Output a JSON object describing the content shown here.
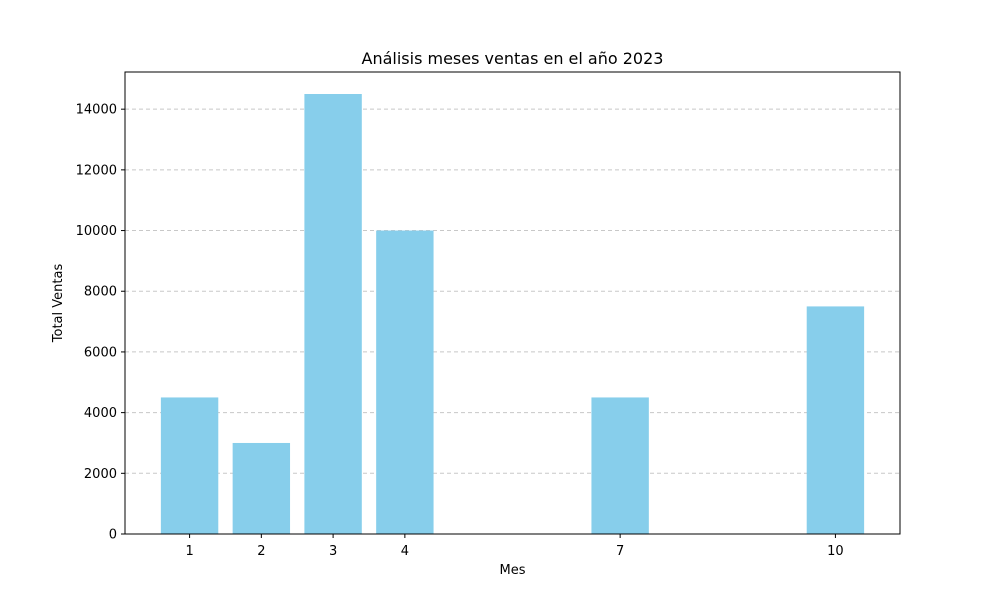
{
  "chart_data": {
    "type": "bar",
    "title": "Análisis meses ventas en el año 2023",
    "xlabel": "Mes",
    "ylabel": "Total Ventas",
    "x": [
      1,
      2,
      3,
      4,
      7,
      10
    ],
    "values": [
      4500,
      3000,
      14500,
      10000,
      4500,
      7500
    ],
    "x_ticks": [
      "1",
      "2",
      "3",
      "4",
      "7",
      "10"
    ],
    "xlim": [
      0.1,
      10.9
    ],
    "ylim": [
      0,
      15225
    ],
    "y_ticks": [
      0,
      2000,
      4000,
      6000,
      8000,
      10000,
      12000,
      14000
    ],
    "bar_color": "#87CEEB",
    "grid": "y-dashed",
    "grid_color": "#c8c8c8"
  }
}
